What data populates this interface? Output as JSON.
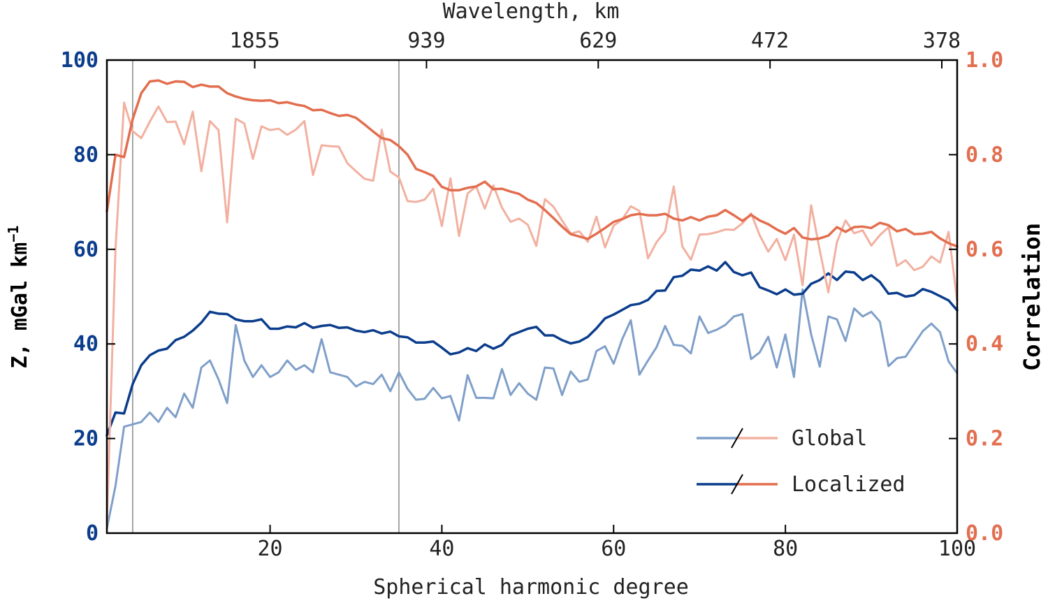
{
  "chart_data": {
    "type": "line",
    "xlabel": "Spherical harmonic degree",
    "top_xlabel": "Wavelength, km",
    "ylabel_left": "Z, mGal km",
    "ylabel_left_sup": "−1",
    "ylabel_right": "Correlation",
    "xlim": [
      1,
      100
    ],
    "ylim_left": [
      0,
      100
    ],
    "ylim_right": [
      0.0,
      1.0
    ],
    "x_ticks": [
      20,
      40,
      60,
      80,
      100
    ],
    "x_tick_labels": [
      "20",
      "40",
      "60",
      "80",
      "100"
    ],
    "y_left_ticks": [
      0,
      20,
      40,
      60,
      80,
      100
    ],
    "y_left_tick_labels": [
      "0",
      "20",
      "40",
      "60",
      "80",
      "100"
    ],
    "y_right_ticks": [
      0.0,
      0.2,
      0.4,
      0.6,
      0.8,
      1.0
    ],
    "y_right_tick_labels": [
      "0.0",
      "0.2",
      "0.4",
      "0.6",
      "0.8",
      "1.0"
    ],
    "top_ticks": [
      20,
      40,
      60,
      80,
      100
    ],
    "top_tick_labels": [
      "1855",
      "939",
      "629",
      "472",
      "378"
    ],
    "vlines": [
      4,
      35
    ],
    "legend": {
      "placement": "lower-right",
      "entries": [
        {
          "label": "Global",
          "colors": [
            "#7f9fc9",
            "#f2b0a0"
          ]
        },
        {
          "label": "Localized",
          "colors": [
            "#0b3d8c",
            "#e26e4f"
          ]
        }
      ]
    },
    "colors": {
      "left_axis": "#0b3d8c",
      "right_axis": "#e26e4f",
      "vline": "#888888"
    },
    "series": [
      {
        "id": "admittance_global",
        "axis": "left",
        "color": "#7f9fc9",
        "width": 3,
        "x": [
          1,
          2,
          3,
          4,
          5,
          6,
          7,
          8,
          9,
          10,
          11,
          12,
          13,
          14,
          15,
          16,
          17,
          18,
          19,
          20,
          21,
          22,
          23,
          24,
          25,
          26,
          27,
          28,
          29,
          30,
          31,
          32,
          33,
          34,
          35,
          36,
          37,
          38,
          39,
          40,
          41,
          42,
          43,
          44,
          45,
          46,
          47,
          48,
          49,
          50,
          51,
          52,
          53,
          54,
          55,
          56,
          57,
          58,
          59,
          60,
          61,
          62,
          63,
          64,
          65,
          66,
          67,
          68,
          69,
          70,
          71,
          72,
          73,
          74,
          75,
          76,
          77,
          78,
          79,
          80,
          81,
          82,
          83,
          84,
          85,
          86,
          87,
          88,
          89,
          90,
          91,
          92,
          93,
          94,
          95,
          96,
          97,
          98,
          99,
          100
        ],
        "y": [
          1,
          10,
          22.5,
          23,
          23.5,
          25.5,
          23.5,
          26.5,
          24.5,
          29.5,
          26.5,
          35,
          36.5,
          32.5,
          27.5,
          44,
          36.5,
          33,
          35.5,
          33,
          34,
          36.5,
          34.5,
          35.5,
          34,
          41,
          34,
          33.5,
          33,
          31,
          32,
          31.5,
          33.5,
          30,
          34,
          30.5,
          28.2,
          28.4,
          30.7,
          28.5,
          29,
          23.8,
          33.4,
          28.6,
          28.6,
          28.5,
          34.7,
          29.2,
          31.7,
          29.5,
          28.2,
          35,
          34.8,
          29.2,
          34.2,
          32,
          32.5,
          38.5,
          39.5,
          35.8,
          41,
          45,
          33.5,
          36.5,
          39.3,
          43.8,
          39.8,
          39.6,
          38,
          45.8,
          42.3,
          43,
          44,
          45.8,
          46.3,
          36.8,
          38.2,
          41.5,
          35,
          42,
          33,
          51.5,
          42,
          35.2,
          45.8,
          45.2,
          40.6,
          47.5,
          45.8,
          46.8,
          44.7,
          35.3,
          37,
          37.3,
          40,
          42.7,
          44.3,
          42.5,
          36.3,
          33.8
        ]
      },
      {
        "id": "admittance_localized",
        "axis": "left",
        "color": "#0b3d8c",
        "width": 3.5,
        "x": [
          1,
          2,
          3,
          4,
          5,
          6,
          7,
          8,
          9,
          10,
          11,
          12,
          13,
          14,
          15,
          16,
          17,
          18,
          19,
          20,
          21,
          22,
          23,
          24,
          25,
          26,
          27,
          28,
          29,
          30,
          31,
          32,
          33,
          34,
          35,
          36,
          37,
          38,
          39,
          40,
          41,
          42,
          43,
          44,
          45,
          46,
          47,
          48,
          49,
          50,
          51,
          52,
          53,
          54,
          55,
          56,
          57,
          58,
          59,
          60,
          61,
          62,
          63,
          64,
          65,
          66,
          67,
          68,
          69,
          70,
          71,
          72,
          73,
          74,
          75,
          76,
          77,
          78,
          79,
          80,
          81,
          82,
          83,
          84,
          85,
          86,
          87,
          88,
          89,
          90,
          91,
          92,
          93,
          94,
          95,
          96,
          97,
          98,
          99,
          100
        ],
        "y": [
          20.7,
          25.5,
          25.3,
          31.5,
          35.5,
          37.6,
          38.6,
          39,
          40.8,
          41.5,
          42.8,
          44.5,
          46.8,
          46.4,
          46.3,
          45.2,
          44.8,
          44.8,
          45.2,
          43.2,
          43.2,
          43.7,
          43.5,
          44.4,
          43.4,
          43.8,
          44,
          43.4,
          43.5,
          42.8,
          42.5,
          42.9,
          42.2,
          42.6,
          41.6,
          41.4,
          40.3,
          40.3,
          40.5,
          39.2,
          37.8,
          38.2,
          39.1,
          38.5,
          39.9,
          39,
          39.8,
          41.8,
          42.5,
          43.2,
          43.6,
          41.8,
          41.8,
          40.8,
          40.1,
          40.5,
          41.5,
          43.3,
          45.4,
          46.2,
          47.2,
          48.2,
          48.5,
          49.3,
          51.2,
          51.3,
          54.1,
          54.4,
          55.7,
          55.5,
          56.4,
          55.5,
          57.3,
          55.2,
          54.5,
          55.1,
          52,
          51.3,
          50.5,
          51.5,
          50.4,
          50.6,
          52.7,
          53.5,
          54.9,
          53.5,
          55.3,
          55.1,
          53.5,
          54.5,
          53.1,
          50.6,
          50.8,
          50,
          50.3,
          51.6,
          51,
          50.1,
          49.2,
          47.1
        ]
      },
      {
        "id": "correlation_global",
        "axis": "right",
        "color": "#f2b0a0",
        "width": 3,
        "x": [
          1,
          2,
          3,
          4,
          5,
          6,
          7,
          8,
          9,
          10,
          11,
          12,
          13,
          14,
          15,
          16,
          17,
          18,
          19,
          20,
          21,
          22,
          23,
          24,
          25,
          26,
          27,
          28,
          29,
          30,
          31,
          32,
          33,
          34,
          35,
          36,
          37,
          38,
          39,
          40,
          41,
          42,
          43,
          44,
          45,
          46,
          47,
          48,
          49,
          50,
          51,
          52,
          53,
          54,
          55,
          56,
          57,
          58,
          59,
          60,
          61,
          62,
          63,
          64,
          65,
          66,
          67,
          68,
          69,
          70,
          71,
          72,
          73,
          74,
          75,
          76,
          77,
          78,
          79,
          80,
          81,
          82,
          83,
          84,
          85,
          86,
          87,
          88,
          89,
          90,
          91,
          92,
          93,
          94,
          95,
          96,
          97,
          98,
          99,
          100
        ],
        "y": [
          0.02,
          0.6,
          0.91,
          0.85,
          0.835,
          0.87,
          0.902,
          0.869,
          0.87,
          0.822,
          0.891,
          0.765,
          0.871,
          0.852,
          0.657,
          0.876,
          0.866,
          0.791,
          0.86,
          0.852,
          0.855,
          0.842,
          0.853,
          0.871,
          0.757,
          0.82,
          0.818,
          0.817,
          0.782,
          0.765,
          0.749,
          0.745,
          0.853,
          0.764,
          0.752,
          0.702,
          0.7,
          0.705,
          0.728,
          0.649,
          0.75,
          0.628,
          0.718,
          0.733,
          0.686,
          0.735,
          0.688,
          0.658,
          0.665,
          0.652,
          0.607,
          0.706,
          0.69,
          0.661,
          0.633,
          0.638,
          0.616,
          0.669,
          0.604,
          0.65,
          0.663,
          0.691,
          0.681,
          0.581,
          0.615,
          0.638,
          0.733,
          0.606,
          0.578,
          0.631,
          0.632,
          0.636,
          0.642,
          0.641,
          0.655,
          0.676,
          0.63,
          0.595,
          0.622,
          0.577,
          0.631,
          0.524,
          0.693,
          0.598,
          0.509,
          0.615,
          0.661,
          0.634,
          0.64,
          0.608,
          0.63,
          0.647,
          0.565,
          0.577,
          0.556,
          0.563,
          0.585,
          0.572,
          0.637,
          0.491
        ]
      },
      {
        "id": "correlation_localized",
        "axis": "right",
        "color": "#e26e4f",
        "width": 3.5,
        "x": [
          1,
          2,
          3,
          4,
          5,
          6,
          7,
          8,
          9,
          10,
          11,
          12,
          13,
          14,
          15,
          16,
          17,
          18,
          19,
          20,
          21,
          22,
          23,
          24,
          25,
          26,
          27,
          28,
          29,
          30,
          31,
          32,
          33,
          34,
          35,
          36,
          37,
          38,
          39,
          40,
          41,
          42,
          43,
          44,
          45,
          46,
          47,
          48,
          49,
          50,
          51,
          52,
          53,
          54,
          55,
          56,
          57,
          58,
          59,
          60,
          61,
          62,
          63,
          64,
          65,
          66,
          67,
          68,
          69,
          70,
          71,
          72,
          73,
          74,
          75,
          76,
          77,
          78,
          79,
          80,
          81,
          82,
          83,
          84,
          85,
          86,
          87,
          88,
          89,
          90,
          91,
          92,
          93,
          94,
          95,
          96,
          97,
          98,
          99,
          100
        ],
        "y": [
          0.68,
          0.8,
          0.795,
          0.875,
          0.93,
          0.955,
          0.957,
          0.95,
          0.955,
          0.954,
          0.943,
          0.948,
          0.944,
          0.944,
          0.93,
          0.923,
          0.918,
          0.915,
          0.914,
          0.915,
          0.909,
          0.911,
          0.906,
          0.903,
          0.894,
          0.895,
          0.888,
          0.882,
          0.884,
          0.878,
          0.864,
          0.849,
          0.835,
          0.831,
          0.818,
          0.8,
          0.77,
          0.763,
          0.755,
          0.732,
          0.725,
          0.725,
          0.73,
          0.733,
          0.743,
          0.727,
          0.728,
          0.722,
          0.717,
          0.705,
          0.698,
          0.683,
          0.666,
          0.648,
          0.632,
          0.627,
          0.622,
          0.633,
          0.645,
          0.658,
          0.664,
          0.672,
          0.675,
          0.672,
          0.672,
          0.675,
          0.665,
          0.661,
          0.668,
          0.661,
          0.669,
          0.672,
          0.683,
          0.672,
          0.66,
          0.673,
          0.661,
          0.653,
          0.642,
          0.633,
          0.645,
          0.625,
          0.621,
          0.623,
          0.629,
          0.647,
          0.637,
          0.647,
          0.648,
          0.645,
          0.656,
          0.651,
          0.638,
          0.643,
          0.632,
          0.633,
          0.637,
          0.623,
          0.613,
          0.606
        ]
      }
    ]
  }
}
